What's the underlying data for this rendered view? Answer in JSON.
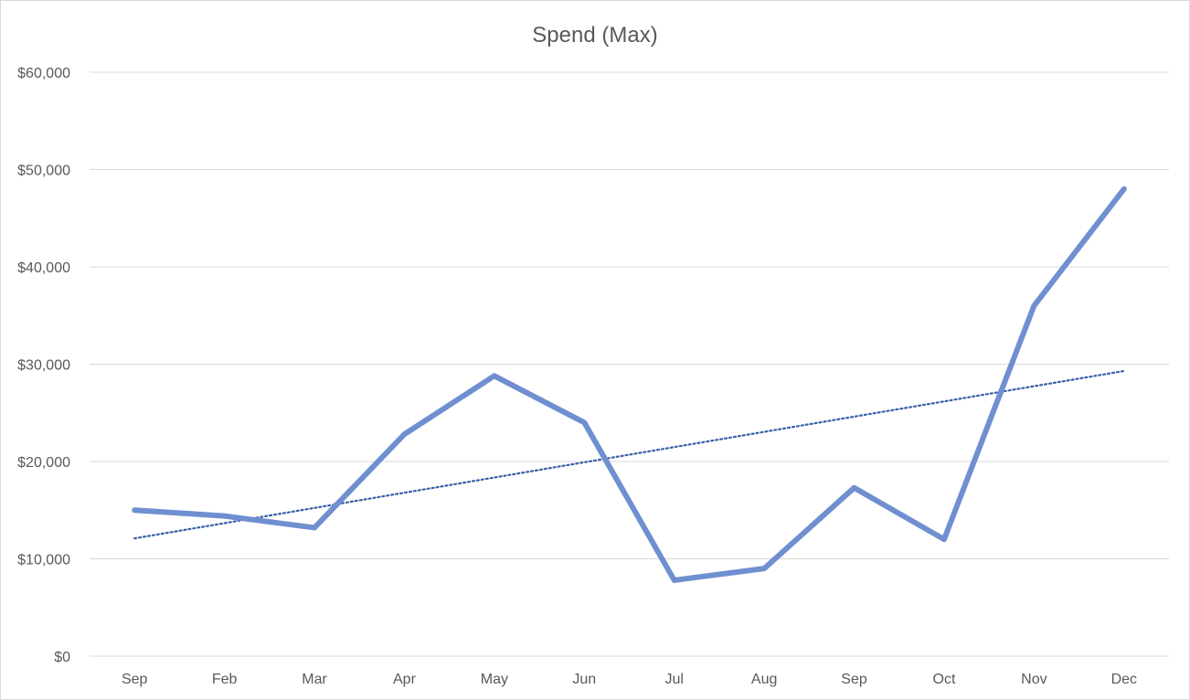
{
  "chart_data": {
    "type": "line",
    "title": "Spend (Max)",
    "xlabel": "",
    "ylabel": "",
    "categories": [
      "Sep",
      "Feb",
      "Mar",
      "Apr",
      "May",
      "Jun",
      "Jul",
      "Aug",
      "Sep",
      "Oct",
      "Nov",
      "Dec"
    ],
    "series": [
      {
        "values": [
          15000,
          14400,
          13200,
          22800,
          28800,
          24000,
          7800,
          9000,
          17300,
          12000,
          36000,
          48000
        ],
        "color": "#6f8fd0"
      }
    ],
    "trendline": {
      "type": "linear",
      "start": 12100,
      "end": 29300,
      "color": "#3a5fa8",
      "style": "dotted"
    },
    "ylim": [
      0,
      60000
    ],
    "y_ticks": [
      0,
      10000,
      20000,
      30000,
      40000,
      50000,
      60000
    ],
    "y_tick_labels": [
      "$0",
      "$10,000",
      "$20,000",
      "$30,000",
      "$40,000",
      "$50,000",
      "$60,000"
    ],
    "grid": true,
    "legend": "none"
  }
}
